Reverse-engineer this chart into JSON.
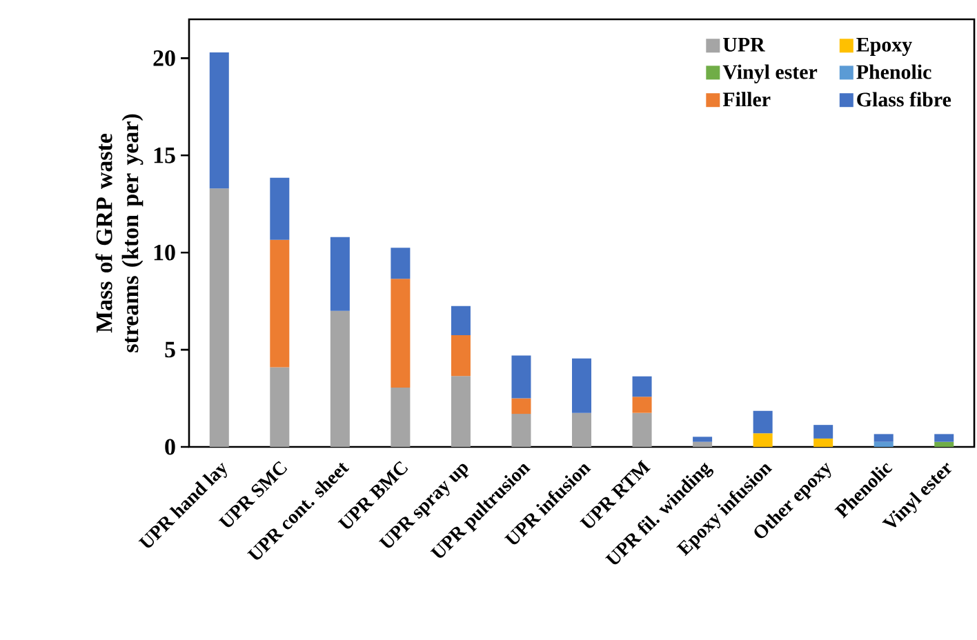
{
  "chart_data": {
    "type": "bar",
    "stacked": true,
    "ylabel": "Mass of GRP waste streams (kton per year)",
    "categories": [
      "UPR hand lay",
      "UPR SMC",
      "UPR cont. sheet",
      "UPR BMC",
      "UPR spray up",
      "UPR pultrusion",
      "UPR infusion",
      "UPR RTM",
      "UPR fil. winding",
      "Epoxy infusion",
      "Other epoxy",
      "Phenolic",
      "Vinyl ester"
    ],
    "series": [
      {
        "name": "UPR",
        "color": "#a5a5a5",
        "values": [
          13.3,
          4.1,
          7.0,
          3.05,
          3.65,
          1.7,
          1.75,
          1.75,
          0.26,
          null,
          null,
          null,
          null
        ]
      },
      {
        "name": "Epoxy",
        "color": "#ffc000",
        "values": [
          null,
          null,
          null,
          null,
          null,
          null,
          null,
          null,
          null,
          0.7,
          0.43,
          null,
          null
        ]
      },
      {
        "name": "Vinyl ester",
        "color": "#70ad47",
        "values": [
          null,
          null,
          null,
          null,
          null,
          null,
          null,
          null,
          null,
          null,
          null,
          null,
          0.26
        ]
      },
      {
        "name": "Phenolic",
        "color": "#5b9bd5",
        "values": [
          null,
          null,
          null,
          null,
          null,
          null,
          null,
          null,
          null,
          null,
          null,
          0.26,
          null
        ]
      },
      {
        "name": "Filler",
        "color": "#ed7d31",
        "values": [
          null,
          6.55,
          null,
          5.6,
          2.1,
          0.8,
          null,
          0.83,
          null,
          null,
          null,
          null,
          null
        ]
      },
      {
        "name": "Glass fibre",
        "color": "#4472c4",
        "values": [
          7.0,
          3.2,
          3.8,
          1.6,
          1.5,
          2.2,
          2.8,
          1.05,
          0.26,
          1.15,
          0.7,
          0.4,
          0.4
        ]
      }
    ],
    "ylim": [
      0,
      22
    ],
    "yticks": [
      0,
      5,
      10,
      15,
      20
    ],
    "legend": "top right"
  }
}
